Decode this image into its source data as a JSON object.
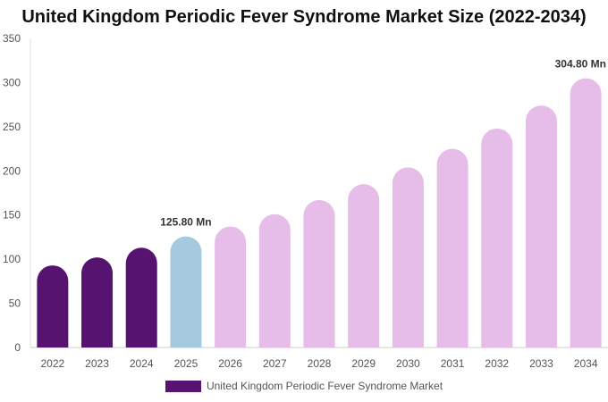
{
  "chart_data": {
    "type": "bar",
    "title": "United Kingdom Periodic Fever Syndrome Market Size (2022-2034)",
    "xlabel": "",
    "ylabel": "",
    "categories": [
      "2022",
      "2023",
      "2024",
      "2025",
      "2026",
      "2027",
      "2028",
      "2029",
      "2030",
      "2031",
      "2032",
      "2033",
      "2034"
    ],
    "series": [
      {
        "name": "United Kingdom Periodic Fever Syndrome Market",
        "values": [
          93,
          102,
          113,
          125.8,
          137,
          151,
          167,
          185,
          204,
          225,
          248,
          274,
          304.8
        ]
      }
    ],
    "ylim": [
      0,
      350
    ],
    "yticks": [
      0,
      50,
      100,
      150,
      200,
      250,
      300,
      350
    ],
    "grid": false,
    "legend": "bottom-center",
    "data_labels": [
      {
        "index": 3,
        "text": "125.80 Mn"
      },
      {
        "index": 12,
        "text": "304.80 Mn"
      }
    ],
    "colors": {
      "historical": "#561470",
      "base_year": "#a5c9df",
      "forecast": "#e6bce8",
      "legend": "#561470"
    }
  }
}
